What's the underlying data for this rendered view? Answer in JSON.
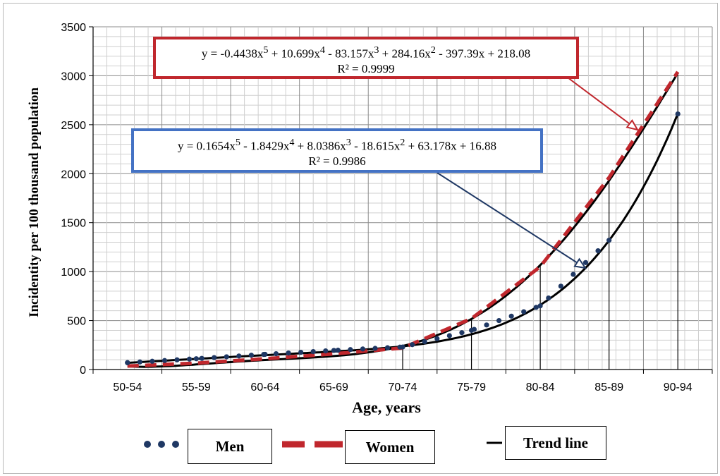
{
  "chart_data": {
    "type": "line",
    "xlabel": "Age, years",
    "ylabel": "Incidentity per 100 thousand population",
    "categories": [
      "50-54",
      "55-59",
      "60-64",
      "65-69",
      "70-74",
      "75-79",
      "80-84",
      "85-89",
      "90-94"
    ],
    "ylim": [
      0,
      3500
    ],
    "yticks": [
      0,
      500,
      1000,
      1500,
      2000,
      2500,
      3000,
      3500
    ],
    "grid": true,
    "legend_placement": "bottom",
    "series": [
      {
        "name": "Men",
        "style": "dotted",
        "color": "#1f3864",
        "values": [
          70,
          110,
          155,
          195,
          230,
          400,
          650,
          1320,
          2610
        ]
      },
      {
        "name": "Women",
        "style": "dashed",
        "color": "#c0272d",
        "values": [
          35,
          65,
          110,
          160,
          220,
          520,
          1050,
          1960,
          3040
        ]
      }
    ],
    "trend_lines": [
      {
        "label": "Trend line",
        "color": "#000000",
        "coefficients": [
          -0.4438,
          10.699,
          -83.157,
          284.16,
          -397.39,
          218.08
        ]
      },
      {
        "label": "Trend line",
        "color": "#000000",
        "coefficients": [
          0.1654,
          -1.8429,
          8.0386,
          -18.615,
          63.178,
          16.88
        ]
      }
    ],
    "annotations": [
      {
        "equation_html": "y = -0.4438x<sup>5</sup> + 10.699x<sup>4</sup> - 83.157x<sup>3</sup> + 284.16x<sup>2</sup> - 397.39x + 218.08",
        "r2": "R² = 0.9999",
        "border_color": "#c0272d"
      },
      {
        "equation_html": "y = 0.1654x<sup>5</sup> - 1.8429x<sup>4</sup> + 8.0386x<sup>3</sup> - 18.615x<sup>2</sup> + 63.178x + 16.88",
        "r2": "R² = 0.9986",
        "border_color": "#4472c4"
      }
    ]
  },
  "legend": {
    "men": "Men",
    "women": "Women",
    "trend": "Trend line"
  }
}
